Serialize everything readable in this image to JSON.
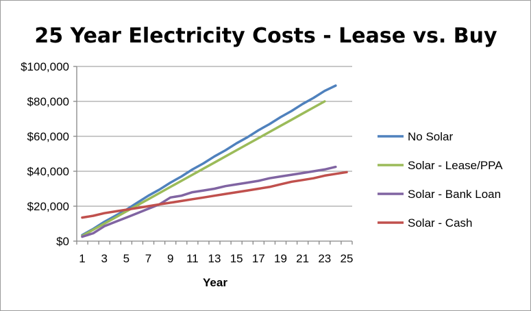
{
  "chart_data": {
    "type": "line",
    "title": "25 Year Electricity Costs - Lease vs. Buy",
    "xlabel": "Year",
    "ylabel": "",
    "x": [
      1,
      2,
      3,
      4,
      5,
      6,
      7,
      8,
      9,
      10,
      11,
      12,
      13,
      14,
      15,
      16,
      17,
      18,
      19,
      20,
      21,
      22,
      23,
      24,
      25
    ],
    "x_tick_labels": [
      "1",
      "3",
      "5",
      "7",
      "9",
      "11",
      "13",
      "15",
      "17",
      "19",
      "21",
      "23",
      "25"
    ],
    "y_tick_labels": [
      "$0",
      "$20,000",
      "$40,000",
      "$60,000",
      "$80,000",
      "$100,000"
    ],
    "y_ticks": [
      0,
      20000,
      40000,
      60000,
      80000,
      100000
    ],
    "ylim": [
      0,
      100000
    ],
    "grid": true,
    "legend_position": "right",
    "series": [
      {
        "name": "No Solar",
        "color": "#4f81bd",
        "values": [
          3500,
          7000,
          11000,
          14500,
          18000,
          22000,
          26000,
          29500,
          33500,
          37000,
          41000,
          44500,
          48500,
          52000,
          56000,
          59500,
          63500,
          67000,
          71000,
          74500,
          78500,
          82000,
          86000,
          89000,
          null
        ]
      },
      {
        "name": "Solar - Lease/PPA",
        "color": "#9bbb59",
        "values": [
          3000,
          6500,
          10000,
          13500,
          17000,
          20500,
          24000,
          27500,
          31000,
          34500,
          38000,
          41500,
          45000,
          48500,
          52000,
          55500,
          59000,
          62500,
          66000,
          69500,
          73000,
          76500,
          80000,
          null,
          null
        ]
      },
      {
        "name": "Solar - Bank Loan",
        "color": "#8064a2",
        "values": [
          2500,
          4500,
          8500,
          11000,
          13500,
          16000,
          18500,
          21000,
          25000,
          26000,
          28000,
          29000,
          30000,
          31500,
          32500,
          33500,
          34500,
          36000,
          37000,
          38000,
          39000,
          40000,
          41000,
          42500,
          null
        ]
      },
      {
        "name": "Solar - Cash",
        "color": "#c0504d",
        "values": [
          13500,
          14500,
          16000,
          17000,
          18000,
          19000,
          20000,
          21000,
          22000,
          23000,
          24000,
          25000,
          26000,
          27000,
          28000,
          29000,
          30000,
          31000,
          32500,
          34000,
          35000,
          36000,
          37500,
          38500,
          39500
        ]
      }
    ]
  }
}
